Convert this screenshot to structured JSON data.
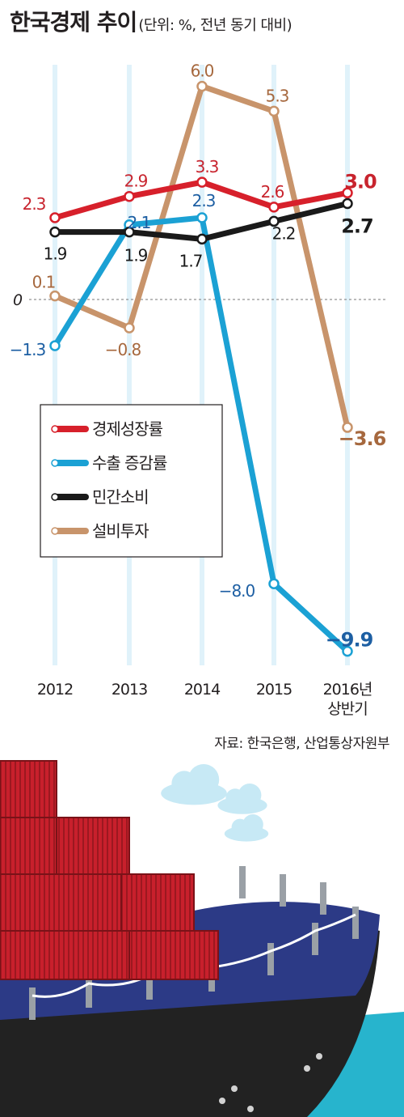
{
  "title": "한국경제 추이",
  "subtitle": "(단위: %, 전년 동기 대비)",
  "source": "자료: 한국은행, 산업통상자원부",
  "colors": {
    "growth": "#d7202b",
    "export": "#1ba1d4",
    "consumption": "#1a1a1a",
    "investment": "#c8946b",
    "growth_label": "#c8242e",
    "export_label": "#1d5fa3",
    "investment_label": "#a6683e",
    "band": "#e0f2fa",
    "sea": "#27b4cd",
    "hull": "#2c3a86",
    "container": "#c8202c"
  },
  "chart_data": {
    "type": "line",
    "title": "한국경제 추이",
    "subtitle": "(단위: %, 전년 동기 대비)",
    "categories": [
      "2012",
      "2013",
      "2014",
      "2015",
      "2016년 상반기"
    ],
    "category_lines": [
      [
        "2012"
      ],
      [
        "2013"
      ],
      [
        "2014"
      ],
      [
        "2015"
      ],
      [
        "2016년",
        "상반기"
      ]
    ],
    "zero_label": "0",
    "ylim": [
      -10.5,
      6.5
    ],
    "grid": false,
    "legend_position": "middle-left",
    "series": [
      {
        "name": "경제성장률",
        "color_key": "growth",
        "label_color_key": "growth_label",
        "values": [
          2.3,
          2.9,
          3.3,
          2.6,
          3.0
        ],
        "labels": [
          "2.3",
          "2.9",
          "3.3",
          "2.6",
          "3.0"
        ],
        "label_side": "above"
      },
      {
        "name": "수출 증감률",
        "color_key": "export",
        "label_color_key": "export_label",
        "values": [
          -1.3,
          2.1,
          2.3,
          -8.0,
          -9.9
        ],
        "labels": [
          "−1.3",
          "2.1",
          "2.3",
          "−8.0",
          "−9.9"
        ],
        "label_side": "mixed"
      },
      {
        "name": "민간소비",
        "color_key": "consumption",
        "label_color_key": "consumption",
        "values": [
          1.9,
          1.9,
          1.7,
          2.2,
          2.7
        ],
        "labels": [
          "1.9",
          "1.9",
          "1.7",
          "2.2",
          "2.7"
        ],
        "label_side": "below"
      },
      {
        "name": "설비투자",
        "color_key": "investment",
        "label_color_key": "investment_label",
        "values": [
          0.1,
          -0.8,
          6.0,
          5.3,
          -3.6
        ],
        "labels": [
          "0.1",
          "−0.8",
          "6.0",
          "5.3",
          "−3.6"
        ],
        "label_side": "mixed"
      }
    ]
  }
}
